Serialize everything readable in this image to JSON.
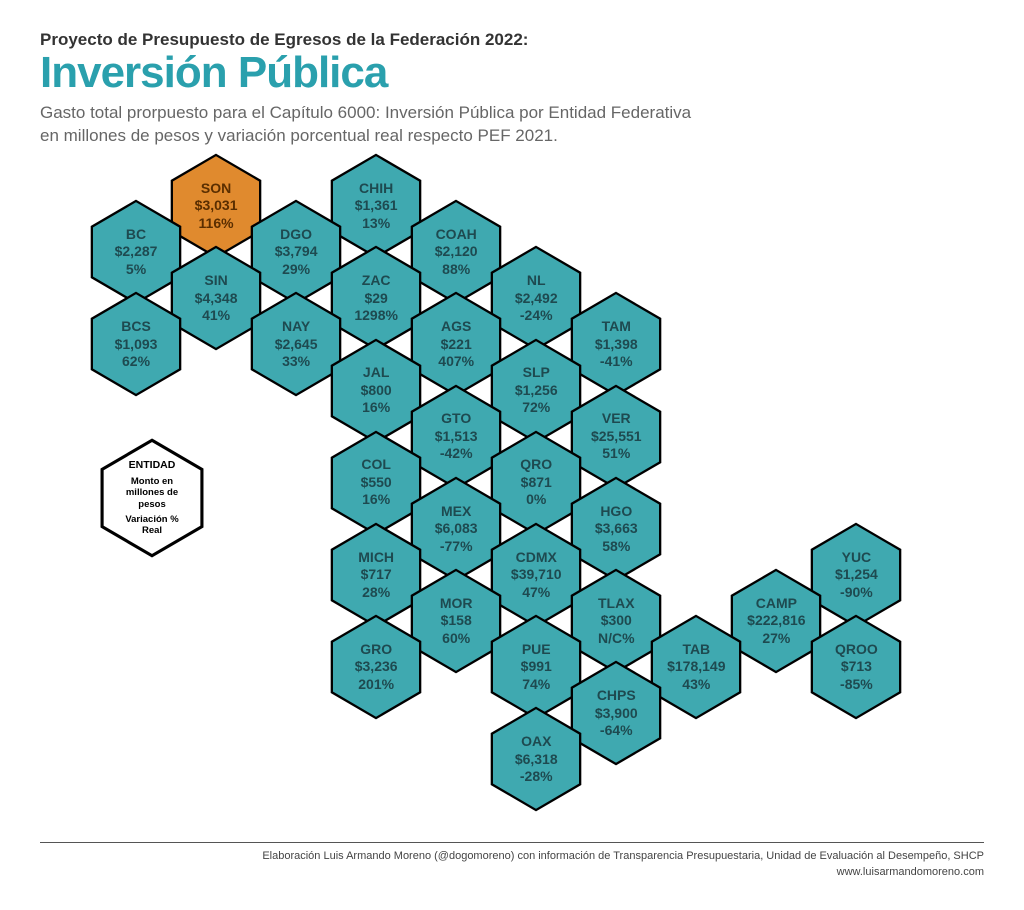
{
  "header": {
    "supertitle": "Proyecto de Presupuesto de Egresos de la Federación 2022:",
    "title": "Inversión Pública",
    "subtitle_line1": "Gasto total prorpuesto para el Capítulo 6000: Inversión Pública por Entidad Federativa",
    "subtitle_line2": "en millones de pesos y variación porcentual real respecto PEF 2021."
  },
  "style": {
    "hex_fill": "#3fa9b0",
    "hex_stroke": "#000000",
    "highlight_fill": "#e08a2e",
    "legend_fill": "#ffffff",
    "title_color": "#2aa0ad",
    "text_color": "#1e4a50",
    "hex_width": 92,
    "hex_height": 106,
    "stroke_width": 2.5
  },
  "legend": {
    "l1": "ENTIDAD",
    "l2": "Monto en millones de pesos",
    "l3": "Variación % Real"
  },
  "footer": {
    "line1": "Elaboración Luis Armando Moreno (@dogomoreno) con información de Transparencia Presupuestaria, Unidad de Evaluación al Desempeño, SHCP",
    "line2": "www.luisarmandomoreno.com"
  },
  "hexes": [
    {
      "id": "son",
      "label": "SON",
      "amount": "$3,031",
      "pct": "116%",
      "col": 2,
      "row": 0,
      "highlight": true
    },
    {
      "id": "chih",
      "label": "CHIH",
      "amount": "$1,361",
      "pct": "13%",
      "col": 4,
      "row": 0
    },
    {
      "id": "bc",
      "label": "BC",
      "amount": "$2,287",
      "pct": "5%",
      "col": 1,
      "row": 1
    },
    {
      "id": "dgo",
      "label": "DGO",
      "amount": "$3,794",
      "pct": "29%",
      "col": 3,
      "row": 1
    },
    {
      "id": "coah",
      "label": "COAH",
      "amount": "$2,120",
      "pct": "88%",
      "col": 5,
      "row": 1
    },
    {
      "id": "sin",
      "label": "SIN",
      "amount": "$4,348",
      "pct": "41%",
      "col": 2,
      "row": 2
    },
    {
      "id": "zac",
      "label": "ZAC",
      "amount": "$29",
      "pct": "1298%",
      "col": 4,
      "row": 2
    },
    {
      "id": "nl",
      "label": "NL",
      "amount": "$2,492",
      "pct": "-24%",
      "col": 6,
      "row": 2
    },
    {
      "id": "bcs",
      "label": "BCS",
      "amount": "$1,093",
      "pct": "62%",
      "col": 1,
      "row": 3
    },
    {
      "id": "nay",
      "label": "NAY",
      "amount": "$2,645",
      "pct": "33%",
      "col": 3,
      "row": 3
    },
    {
      "id": "ags",
      "label": "AGS",
      "amount": "$221",
      "pct": "407%",
      "col": 5,
      "row": 3
    },
    {
      "id": "tam",
      "label": "TAM",
      "amount": "$1,398",
      "pct": "-41%",
      "col": 7,
      "row": 3
    },
    {
      "id": "jal",
      "label": "JAL",
      "amount": "$800",
      "pct": "16%",
      "col": 4,
      "row": 4
    },
    {
      "id": "slp",
      "label": "SLP",
      "amount": "$1,256",
      "pct": "72%",
      "col": 6,
      "row": 4
    },
    {
      "id": "gto",
      "label": "GTO",
      "amount": "$1,513",
      "pct": "-42%",
      "col": 5,
      "row": 5
    },
    {
      "id": "ver",
      "label": "VER",
      "amount": "$25,551",
      "pct": "51%",
      "col": 7,
      "row": 5
    },
    {
      "id": "col",
      "label": "COL",
      "amount": "$550",
      "pct": "16%",
      "col": 4,
      "row": 6
    },
    {
      "id": "qro",
      "label": "QRO",
      "amount": "$871",
      "pct": "0%",
      "col": 6,
      "row": 6
    },
    {
      "id": "mex",
      "label": "MEX",
      "amount": "$6,083",
      "pct": "-77%",
      "col": 5,
      "row": 7
    },
    {
      "id": "hgo",
      "label": "HGO",
      "amount": "$3,663",
      "pct": "58%",
      "col": 7,
      "row": 7
    },
    {
      "id": "mich",
      "label": "MICH",
      "amount": "$717",
      "pct": "28%",
      "col": 4,
      "row": 8
    },
    {
      "id": "cdmx",
      "label": "CDMX",
      "amount": "$39,710",
      "pct": "47%",
      "col": 6,
      "row": 8
    },
    {
      "id": "yuc",
      "label": "YUC",
      "amount": "$1,254",
      "pct": "-90%",
      "col": 10,
      "row": 8
    },
    {
      "id": "mor",
      "label": "MOR",
      "amount": "$158",
      "pct": "60%",
      "col": 5,
      "row": 9
    },
    {
      "id": "tlax",
      "label": "TLAX",
      "amount": "$300",
      "pct": "N/C%",
      "col": 7,
      "row": 9
    },
    {
      "id": "camp",
      "label": "CAMP",
      "amount": "$222,816",
      "pct": "27%",
      "col": 9,
      "row": 9
    },
    {
      "id": "gro",
      "label": "GRO",
      "amount": "$3,236",
      "pct": "201%",
      "col": 4,
      "row": 10
    },
    {
      "id": "pue",
      "label": "PUE",
      "amount": "$991",
      "pct": "74%",
      "col": 6,
      "row": 10
    },
    {
      "id": "tab",
      "label": "TAB",
      "amount": "$178,149",
      "pct": "43%",
      "col": 8,
      "row": 10
    },
    {
      "id": "qroo",
      "label": "QROO",
      "amount": "$713",
      "pct": "-85%",
      "col": 10,
      "row": 10
    },
    {
      "id": "chps",
      "label": "CHPS",
      "amount": "$3,900",
      "pct": "-64%",
      "col": 7,
      "row": 11
    },
    {
      "id": "oax",
      "label": "OAX",
      "amount": "$6,318",
      "pct": "-28%",
      "col": 6,
      "row": 12
    }
  ]
}
